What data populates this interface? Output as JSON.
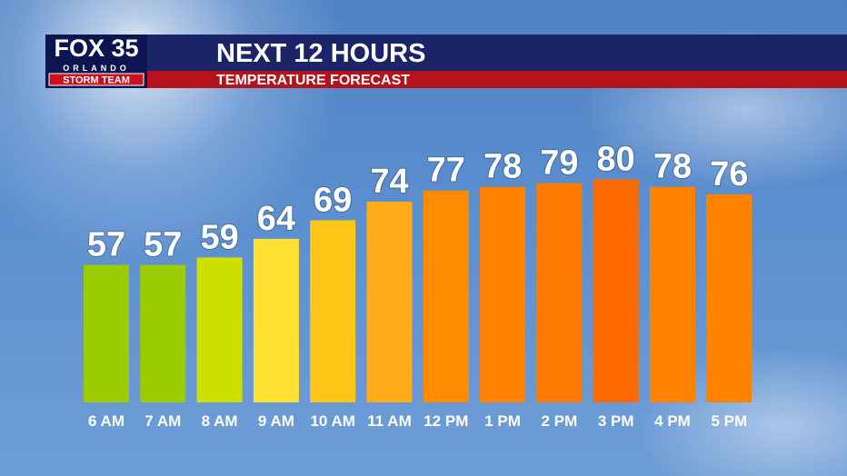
{
  "logo": {
    "station": "FOX 35",
    "market": "ORLANDO",
    "brand": "STORM TEAM"
  },
  "chart_data": {
    "type": "bar",
    "title": "NEXT 12 HOURS",
    "subtitle": "TEMPERATURE FORECAST",
    "categories": [
      "6 AM",
      "7 AM",
      "8 AM",
      "9 AM",
      "10 AM",
      "11 AM",
      "12 PM",
      "1 PM",
      "2 PM",
      "3 PM",
      "4 PM",
      "5 PM"
    ],
    "values": [
      57,
      57,
      59,
      64,
      69,
      74,
      77,
      78,
      79,
      80,
      78,
      76
    ],
    "colors": [
      "#9ccc00",
      "#9ccc00",
      "#cde000",
      "#ffe033",
      "#ffc61a",
      "#ffab1a",
      "#ff8c00",
      "#ff8200",
      "#ff7a00",
      "#ff6a00",
      "#ff8200",
      "#ff8200"
    ],
    "ylim": [
      20,
      85
    ]
  }
}
